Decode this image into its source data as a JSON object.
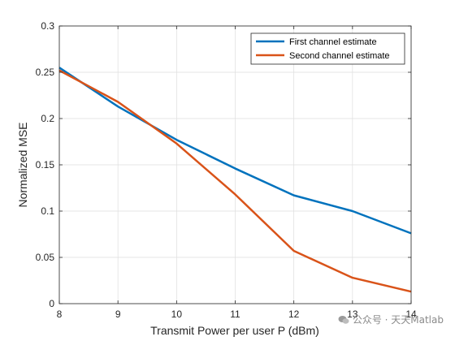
{
  "chart_data": {
    "type": "line",
    "xlabel": "Transmit Power per user P (dBm)",
    "ylabel": "Normalized MSE",
    "xlim": [
      8,
      14
    ],
    "ylim": [
      0,
      0.3
    ],
    "xticks": [
      "8",
      "9",
      "10",
      "11",
      "12",
      "13",
      "14"
    ],
    "yticks": [
      "0",
      "0.05",
      "0.1",
      "0.15",
      "0.2",
      "0.25",
      "0.3"
    ],
    "grid": true,
    "legend_position": "top-right",
    "x": [
      8,
      9,
      10,
      11,
      12,
      13,
      14
    ],
    "series": [
      {
        "name": "First channel estimate",
        "color": "#0072BD",
        "values": [
          0.255,
          0.213,
          0.177,
          0.146,
          0.117,
          0.1,
          0.076
        ]
      },
      {
        "name": "Second channel estimate",
        "color": "#D95319",
        "values": [
          0.252,
          0.218,
          0.173,
          0.118,
          0.057,
          0.028,
          0.013
        ]
      }
    ]
  },
  "watermark": {
    "text": "公众号 · 天天Matlab",
    "icon": "wechat-icon"
  }
}
